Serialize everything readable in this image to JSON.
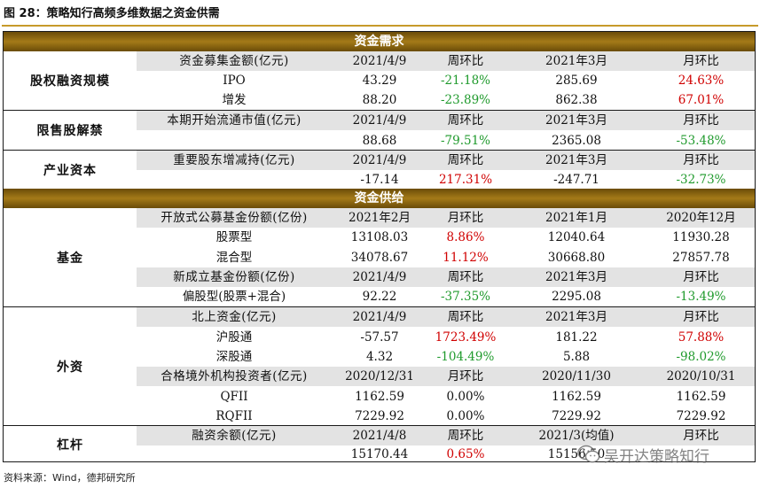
{
  "title": "图 28：策略知行高频多维数据之资金供需",
  "bands": {
    "demand": "资金需求",
    "supply": "资金供给"
  },
  "sections": [
    {
      "label": "股权融资规模",
      "rows": [
        {
          "header": true,
          "label": "资金募集金额(亿元)",
          "v1": "2021/4/9",
          "c1": "周环比",
          "v2": "2021年3月",
          "c2": "月环比"
        },
        {
          "label": "IPO",
          "v1": "43.29",
          "c1": "-21.18%",
          "c1_tone": "neg",
          "v2": "285.69",
          "c2": "24.63%",
          "c2_tone": "pos"
        },
        {
          "label": "增发",
          "v1": "88.20",
          "c1": "-23.89%",
          "c1_tone": "neg",
          "v2": "862.38",
          "c2": "67.01%",
          "c2_tone": "pos"
        }
      ]
    },
    {
      "label": "限售股解禁",
      "rows": [
        {
          "header": true,
          "label": "本期开始流通市值(亿元)",
          "v1": "2021/4/9",
          "c1": "周环比",
          "v2": "2021年3月",
          "c2": "月环比"
        },
        {
          "label": "",
          "v1": "88.68",
          "c1": "-79.51%",
          "c1_tone": "neg",
          "v2": "2365.08",
          "c2": "-53.48%",
          "c2_tone": "neg"
        }
      ]
    },
    {
      "label": "产业资本",
      "rows": [
        {
          "header": true,
          "label": "重要股东增减持(亿元)",
          "v1": "2021/4/9",
          "c1": "周环比",
          "v2": "2021年3月",
          "c2": "月环比"
        },
        {
          "label": "",
          "v1": "-17.14",
          "c1": "217.31%",
          "c1_tone": "pos",
          "v2": "-247.71",
          "c2": "-32.73%",
          "c2_tone": "neg"
        }
      ]
    },
    {
      "label": "基金",
      "rows": [
        {
          "header": true,
          "label": "开放式公募基金份额(亿份)",
          "v1": "2021年2月",
          "c1": "月环比",
          "v2": "2021年1月",
          "c2": "2020年12月"
        },
        {
          "label": "股票型",
          "v1": "13108.03",
          "c1": "8.86%",
          "c1_tone": "pos",
          "v2": "12040.64",
          "c2": "11930.28",
          "c2_tone": "neu"
        },
        {
          "label": "混合型",
          "v1": "34078.67",
          "c1": "11.12%",
          "c1_tone": "pos",
          "v2": "30668.80",
          "c2": "27857.78",
          "c2_tone": "neu"
        },
        {
          "header": true,
          "label": "新成立基金份额(亿份)",
          "v1": "2021/4/9",
          "c1": "周环比",
          "v2": "2021年3月",
          "c2": "月环比"
        },
        {
          "label": "偏股型(股票+混合)",
          "v1": "92.22",
          "c1": "-37.35%",
          "c1_tone": "neg",
          "v2": "2295.08",
          "c2": "-13.49%",
          "c2_tone": "neg"
        }
      ]
    },
    {
      "label": "外资",
      "rows": [
        {
          "header": true,
          "label": "北上资金(亿元)",
          "v1": "2021/4/9",
          "c1": "周环比",
          "v2": "2021年3月",
          "c2": "月环比"
        },
        {
          "label": "沪股通",
          "v1": "-57.57",
          "c1": "1723.49%",
          "c1_tone": "pos",
          "v2": "181.22",
          "c2": "57.88%",
          "c2_tone": "pos"
        },
        {
          "label": "深股通",
          "v1": "4.32",
          "c1": "-104.49%",
          "c1_tone": "neg",
          "v2": "5.88",
          "c2": "-98.02%",
          "c2_tone": "neg"
        },
        {
          "header": true,
          "label": "合格境外机构投资者(亿元)",
          "v1": "2020/12/31",
          "c1": "月环比",
          "v2": "2020/11/30",
          "c2": "2020/10/31"
        },
        {
          "label": "QFII",
          "v1": "1162.59",
          "c1": "0.00%",
          "c1_tone": "neu",
          "v2": "1162.59",
          "c2": "1162.59",
          "c2_tone": "neu"
        },
        {
          "label": "RQFII",
          "v1": "7229.92",
          "c1": "0.00%",
          "c1_tone": "neu",
          "v2": "7229.92",
          "c2": "7229.92",
          "c2_tone": "neu"
        }
      ]
    },
    {
      "label": "杠杆",
      "rows": [
        {
          "header": true,
          "label": "融资余额(亿元)",
          "v1": "2021/4/8",
          "c1": "周环比",
          "v2": "2021/3(均值)",
          "c2": "月环比"
        },
        {
          "label": "",
          "v1": "15170.44",
          "c1": "0.65%",
          "c1_tone": "pos",
          "v2": "15156.50",
          "c2": "",
          "c2_tone": "neu"
        }
      ]
    }
  ],
  "source": "资料来源：Wind，德邦研究所",
  "watermark": "吴开达策略知行",
  "watermark_icon": "wechat-icon"
}
